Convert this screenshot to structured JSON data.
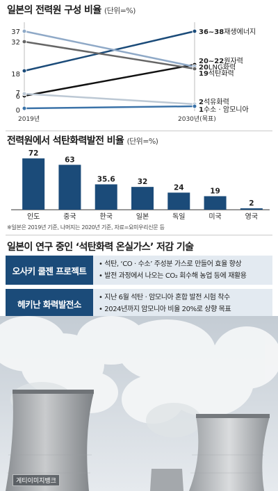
{
  "chart_data": [
    {
      "type": "line",
      "title": "일본의 전력원 구성 비율",
      "unit": "(단위=%)",
      "x": [
        "2019년",
        "2030년(목표)"
      ],
      "series": [
        {
          "name": "재생에너지",
          "values": [
            18,
            37
          ],
          "start_label": "18",
          "end_label": "36~38",
          "color": "#1b4b79"
        },
        {
          "name": "원자력",
          "values": [
            6,
            21
          ],
          "start_label": "6",
          "end_label": "20~22",
          "color": "#111111"
        },
        {
          "name": "LNG화력",
          "values": [
            37,
            20
          ],
          "start_label": "37",
          "end_label": "20",
          "color": "#8fa9c7"
        },
        {
          "name": "석탄화력",
          "values": [
            32,
            19
          ],
          "start_label": "32",
          "end_label": "19",
          "color": "#666666"
        },
        {
          "name": "석유화력",
          "values": [
            7,
            2
          ],
          "start_label": "7",
          "end_label": "2",
          "color": "#bcc8d4"
        },
        {
          "name": "수소 · 암모니아",
          "values": [
            0,
            1
          ],
          "start_label": "0",
          "end_label": "1",
          "color": "#3a72a8"
        }
      ],
      "ylim": [
        0,
        40
      ]
    },
    {
      "type": "bar",
      "title": "전력원에서 석탄화력발전 비율",
      "unit": "(단위=%)",
      "categories": [
        "인도",
        "중국",
        "한국",
        "일본",
        "독일",
        "미국",
        "영국"
      ],
      "values": [
        72,
        63,
        35.6,
        32,
        24,
        19,
        2
      ],
      "value_labels": [
        "72",
        "63",
        "35.6",
        "32",
        "24",
        "19",
        "2"
      ],
      "ylim": [
        0,
        75
      ],
      "color": "#1b4b79"
    }
  ],
  "note": "※일본은 2019년 기준, 나머지는 2020년 기준, 자료=요미우리신문 등",
  "tech": {
    "title": "일본이 연구 중인 ‘석탄화력 온실가스’ 저감 기술",
    "items": [
      {
        "label": "오사키 쿨젠 프로젝트",
        "lines": [
          "• 석탄, ‘CO · 수소’ 주성분 가스로 만들어 효율 향상",
          "• 발전 과정에서 나오는 CO₂ 회수해 농업 등에 재활용"
        ]
      },
      {
        "label": "헤키난 화력발전소",
        "lines": [
          "• 지난 6월 석탄 · 암모니아 혼합 발전 시험 착수",
          "• 2024년까지 암모니아 비율 20%로 상향 목표"
        ]
      }
    ]
  },
  "photo_credit": "게티이미지뱅크"
}
